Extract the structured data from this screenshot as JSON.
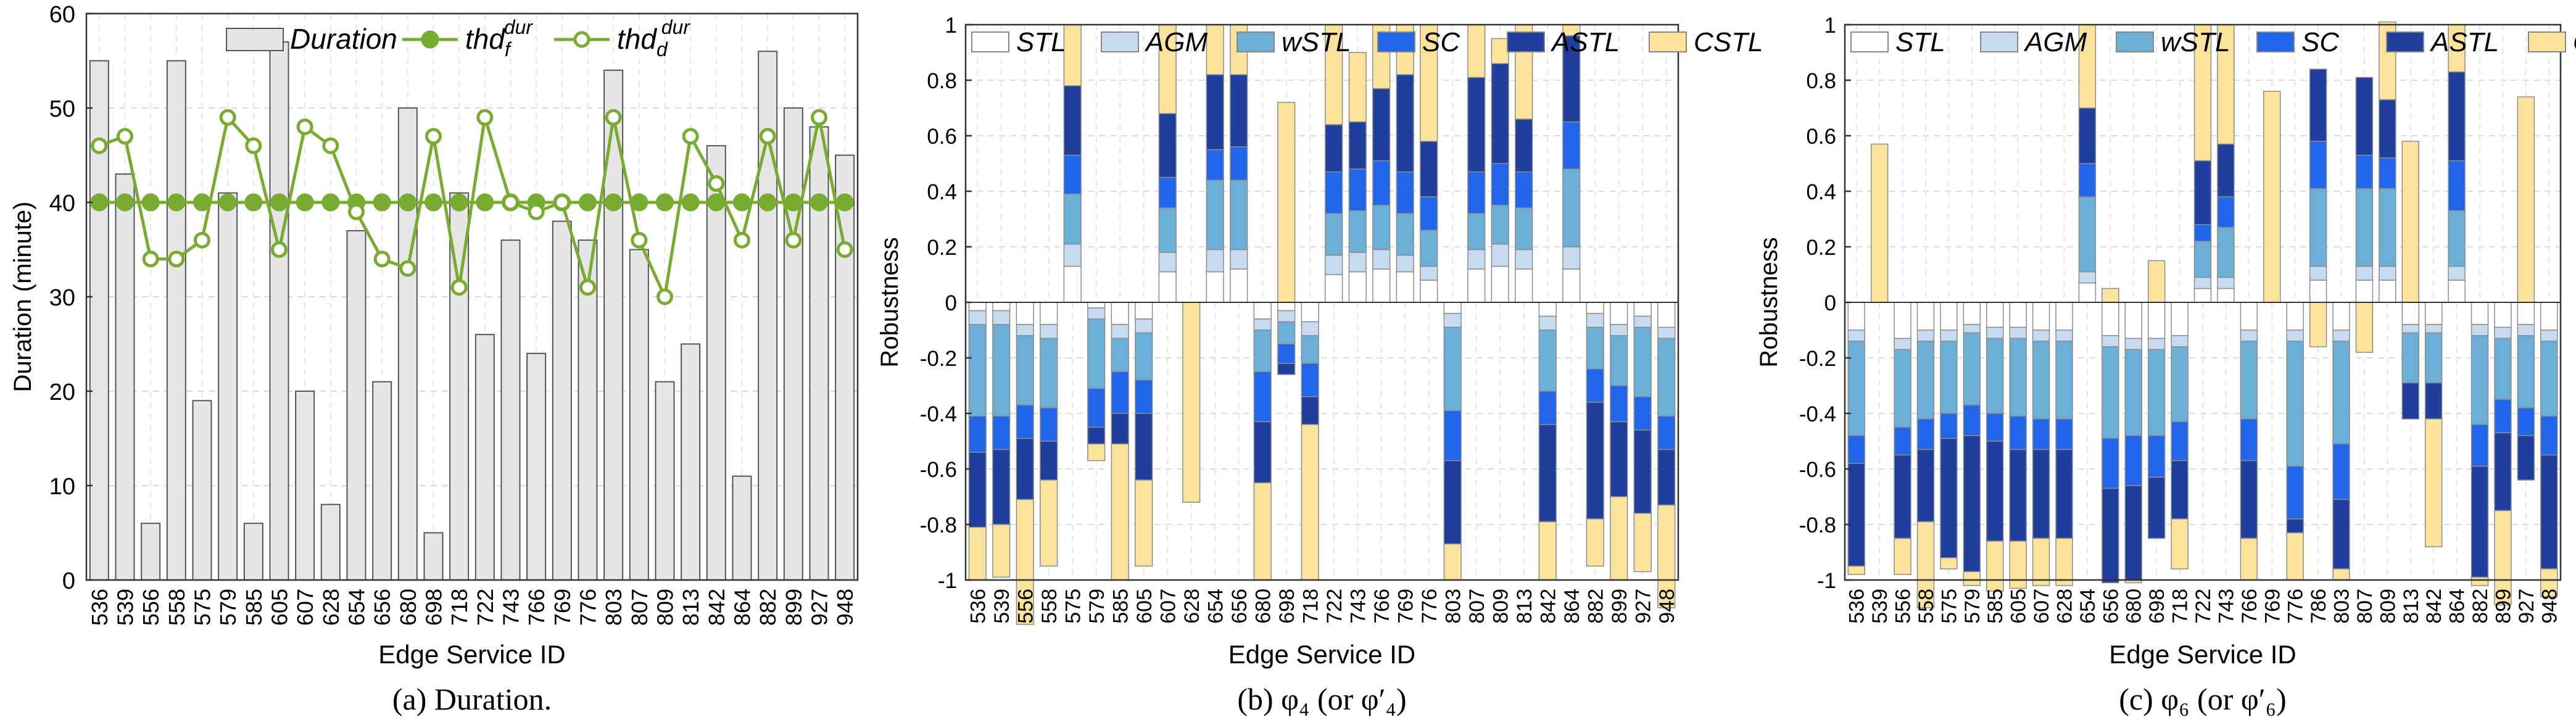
{
  "figure": {
    "captions": [
      "(a) Duration.",
      "(b) φ₄ (or φ′₄)",
      "(c) φ₆ (or φ′₆)"
    ]
  },
  "chart_data": [
    {
      "type": "bar",
      "subtype": "bar+line",
      "caption": "(a) Duration.",
      "xlabel": "Edge Service ID",
      "ylabel": "Duration (minute)",
      "ylim": [
        0,
        60
      ],
      "yticks": [
        0,
        10,
        20,
        30,
        40,
        50,
        60
      ],
      "grid": true,
      "legend_position": "top",
      "categories": [
        "536",
        "539",
        "556",
        "558",
        "575",
        "579",
        "585",
        "605",
        "607",
        "628",
        "654",
        "656",
        "680",
        "698",
        "718",
        "722",
        "743",
        "766",
        "769",
        "776",
        "803",
        "807",
        "809",
        "813",
        "842",
        "864",
        "882",
        "899",
        "927",
        "948"
      ],
      "series": [
        {
          "name": "Duration",
          "kind": "bar",
          "color": "#e6e6e6",
          "values": [
            55,
            43,
            6,
            55,
            19,
            41,
            6,
            57,
            20,
            8,
            37,
            21,
            50,
            5,
            41,
            26,
            36,
            24,
            38,
            36,
            54,
            35,
            21,
            25,
            46,
            11,
            56,
            50,
            48,
            45
          ]
        },
        {
          "name": "thd_f^dur",
          "kind": "line",
          "marker": "filled-circle",
          "color": "#77ac30",
          "values": [
            40,
            40,
            40,
            40,
            40,
            40,
            40,
            40,
            40,
            40,
            40,
            40,
            40,
            40,
            40,
            40,
            40,
            40,
            40,
            40,
            40,
            40,
            40,
            40,
            40,
            40,
            40,
            40,
            40,
            40
          ]
        },
        {
          "name": "thd_d^dur",
          "kind": "line",
          "marker": "open-circle",
          "color": "#77ac30",
          "values": [
            46,
            47,
            34,
            34,
            36,
            49,
            46,
            35,
            48,
            46,
            39,
            34,
            33,
            47,
            31,
            49,
            40,
            39,
            40,
            31,
            49,
            36,
            30,
            47,
            42,
            36,
            47,
            36,
            49,
            35
          ]
        }
      ]
    },
    {
      "type": "bar",
      "subtype": "stacked-bar",
      "caption": "(b) φ₄ (or φ′₄)",
      "xlabel": "Edge Service ID",
      "ylabel": "Robustness",
      "ylim": [
        -1,
        1
      ],
      "yticks": [
        "-1",
        "-0.8",
        "-0.6",
        "-0.4",
        "-0.2",
        "0",
        "0.2",
        "0.4",
        "0.6",
        "0.8",
        "1"
      ],
      "grid": true,
      "legend_position": "top",
      "categories": [
        "536",
        "539",
        "556",
        "558",
        "575",
        "579",
        "585",
        "605",
        "607",
        "628",
        "654",
        "656",
        "680",
        "698",
        "718",
        "722",
        "743",
        "766",
        "769",
        "776",
        "803",
        "807",
        "809",
        "813",
        "842",
        "864",
        "882",
        "899",
        "927",
        "948"
      ],
      "series_names": [
        "STL",
        "AGM",
        "wSTL",
        "SC",
        "ASTL",
        "CSTL"
      ],
      "series_colors": [
        "#ffffff",
        "#c6dbef",
        "#6baed6",
        "#2166ea",
        "#1f3e9e",
        "#fbe39b"
      ],
      "series": [
        {
          "name": "STL",
          "values": [
            -0.03,
            -0.03,
            -0.08,
            -0.08,
            0.13,
            -0.02,
            -0.08,
            -0.06,
            0.11,
            0,
            0.11,
            0.12,
            -0.06,
            -0.03,
            -0.07,
            0.1,
            0.11,
            0.12,
            0.11,
            0.08,
            -0.04,
            0.12,
            0.13,
            0.12,
            -0.05,
            0.12,
            -0.04,
            -0.08,
            -0.05,
            -0.09
          ]
        },
        {
          "name": "AGM",
          "values": [
            -0.05,
            -0.05,
            -0.04,
            -0.05,
            0.08,
            -0.04,
            -0.05,
            -0.05,
            0.07,
            0,
            0.08,
            0.07,
            -0.04,
            -0.04,
            -0.05,
            0.07,
            0.07,
            0.07,
            0.06,
            0.05,
            -0.05,
            0.07,
            0.08,
            0.07,
            -0.05,
            0.08,
            -0.05,
            -0.04,
            -0.04,
            -0.04
          ]
        },
        {
          "name": "wSTL",
          "values": [
            -0.33,
            -0.33,
            -0.25,
            -0.25,
            0.18,
            -0.25,
            -0.12,
            -0.17,
            0.16,
            0,
            0.25,
            0.25,
            -0.15,
            -0.08,
            -0.1,
            0.15,
            0.15,
            0.16,
            0.15,
            0.13,
            -0.3,
            0.13,
            0.14,
            0.15,
            -0.22,
            0.28,
            -0.15,
            -0.18,
            -0.25,
            -0.28
          ]
        },
        {
          "name": "SC",
          "values": [
            -0.13,
            -0.12,
            -0.12,
            -0.12,
            0.14,
            -0.14,
            -0.15,
            -0.12,
            0.11,
            0,
            0.11,
            0.12,
            -0.18,
            -0.07,
            -0.12,
            0.15,
            0.15,
            0.16,
            0.15,
            0.12,
            -0.18,
            0.15,
            0.15,
            0.13,
            -0.12,
            0.17,
            -0.12,
            -0.13,
            -0.12,
            -0.12
          ]
        },
        {
          "name": "ASTL",
          "values": [
            -0.27,
            -0.27,
            -0.22,
            -0.14,
            0.25,
            -0.06,
            -0.11,
            -0.24,
            0.23,
            0,
            0.27,
            0.26,
            -0.22,
            -0.04,
            -0.1,
            0.17,
            0.17,
            0.26,
            0.35,
            0.2,
            -0.3,
            0.34,
            0.36,
            0.19,
            -0.35,
            0.31,
            -0.42,
            -0.27,
            -0.3,
            -0.2
          ]
        },
        {
          "name": "CSTL",
          "values": [
            -0.19,
            -0.19,
            -0.45,
            -0.31,
            0.22,
            -0.06,
            -0.49,
            -0.31,
            0.32,
            -0.72,
            0.18,
            0.18,
            -0.35,
            0.72,
            -0.56,
            0.36,
            0.25,
            0.23,
            0.18,
            0.42,
            -0.13,
            0.19,
            0.09,
            0.34,
            -0.21,
            0.04,
            -0.17,
            -0.3,
            -0.21,
            -0.37
          ]
        }
      ],
      "outlier_bars": [
        {
          "category": "539",
          "CSTL": 0.18
        },
        {
          "category": "579",
          "CSTL": 0.43
        },
        {
          "category": "776",
          "CSTL": -0.42
        },
        {
          "category": "807",
          "CSTL": -0.21
        },
        {
          "category": "864",
          "CSTL": -0.04
        },
        {
          "category": "927",
          "CSTL": 0.04
        }
      ]
    },
    {
      "type": "bar",
      "subtype": "stacked-bar",
      "caption": "(c) φ₆ (or φ′₆)",
      "xlabel": "Edge Service ID",
      "ylabel": "Robustness",
      "ylim": [
        -1,
        1
      ],
      "yticks": [
        "-1",
        "-0.8",
        "-0.6",
        "-0.4",
        "-0.2",
        "0",
        "0.2",
        "0.4",
        "0.6",
        "0.8",
        "1"
      ],
      "grid": true,
      "legend_position": "top",
      "categories": [
        "536",
        "539",
        "556",
        "558",
        "575",
        "579",
        "585",
        "605",
        "607",
        "628",
        "654",
        "656",
        "680",
        "698",
        "718",
        "722",
        "743",
        "766",
        "769",
        "776",
        "786",
        "803",
        "807",
        "809",
        "813",
        "842",
        "864",
        "882",
        "899",
        "927",
        "948"
      ],
      "series_names": [
        "STL",
        "AGM",
        "wSTL",
        "SC",
        "ASTL",
        "CSTL"
      ],
      "series_colors": [
        "#ffffff",
        "#c6dbef",
        "#6baed6",
        "#2166ea",
        "#1f3e9e",
        "#fbe39b"
      ],
      "series": [
        {
          "name": "STL",
          "values": [
            -0.1,
            0,
            -0.13,
            -0.1,
            -0.1,
            -0.08,
            -0.09,
            -0.09,
            -0.1,
            -0.1,
            0.07,
            -0.12,
            -0.13,
            -0.13,
            -0.12,
            0.05,
            0.05,
            -0.1,
            0,
            -0.1,
            0.08,
            -0.1,
            0.08,
            0.08,
            -0.08,
            -0.08,
            0.08,
            -0.08,
            -0.09,
            -0.08,
            -0.1
          ]
        },
        {
          "name": "AGM",
          "values": [
            -0.04,
            0,
            -0.04,
            -0.04,
            -0.04,
            -0.03,
            -0.04,
            -0.04,
            -0.04,
            -0.04,
            0.04,
            -0.04,
            -0.04,
            -0.04,
            -0.04,
            0.04,
            0.04,
            -0.04,
            0,
            -0.04,
            0.05,
            -0.04,
            0.05,
            0.05,
            -0.03,
            -0.03,
            0.05,
            -0.04,
            -0.04,
            -0.04,
            -0.04
          ]
        },
        {
          "name": "wSTL",
          "values": [
            -0.34,
            0,
            -0.28,
            -0.28,
            -0.26,
            -0.26,
            -0.27,
            -0.28,
            -0.28,
            -0.28,
            0.27,
            -0.33,
            -0.31,
            -0.31,
            -0.27,
            0.13,
            0.18,
            -0.28,
            0,
            -0.45,
            0.28,
            -0.37,
            0.28,
            0.28,
            -0.18,
            -0.18,
            0.2,
            -0.32,
            -0.22,
            -0.26,
            -0.27
          ]
        },
        {
          "name": "SC",
          "values": [
            -0.1,
            0,
            -0.1,
            -0.11,
            -0.09,
            -0.11,
            -0.1,
            -0.12,
            -0.11,
            -0.11,
            0.12,
            -0.18,
            -0.18,
            -0.15,
            -0.14,
            0.06,
            0.11,
            -0.15,
            0,
            -0.19,
            0.17,
            -0.2,
            0.12,
            0.11,
            0,
            0,
            0.18,
            -0.15,
            -0.12,
            -0.1,
            -0.14
          ]
        },
        {
          "name": "ASTL",
          "values": [
            -0.37,
            0,
            -0.3,
            -0.26,
            -0.43,
            -0.49,
            -0.36,
            -0.33,
            -0.32,
            -0.32,
            0.2,
            -0.34,
            -0.34,
            -0.22,
            -0.21,
            0.23,
            0.19,
            -0.28,
            0,
            -0.05,
            0.26,
            -0.25,
            0.28,
            0.21,
            -0.13,
            -0.13,
            0.32,
            -0.4,
            -0.28,
            -0.16,
            -0.41
          ]
        },
        {
          "name": "CSTL",
          "values": [
            -0.03,
            0.57,
            -0.13,
            -0.31,
            -0.04,
            -0.05,
            -0.18,
            -0.17,
            -0.17,
            -0.17,
            0.3,
            0.05,
            -0.01,
            0.15,
            -0.18,
            0.49,
            0.43,
            -0.15,
            0.76,
            -0.17,
            -0.16,
            -0.04,
            -0.18,
            0.28,
            0.58,
            -0.46,
            0.17,
            -0.03,
            -0.34,
            0.74,
            -0.1
          ]
        }
      ]
    }
  ]
}
